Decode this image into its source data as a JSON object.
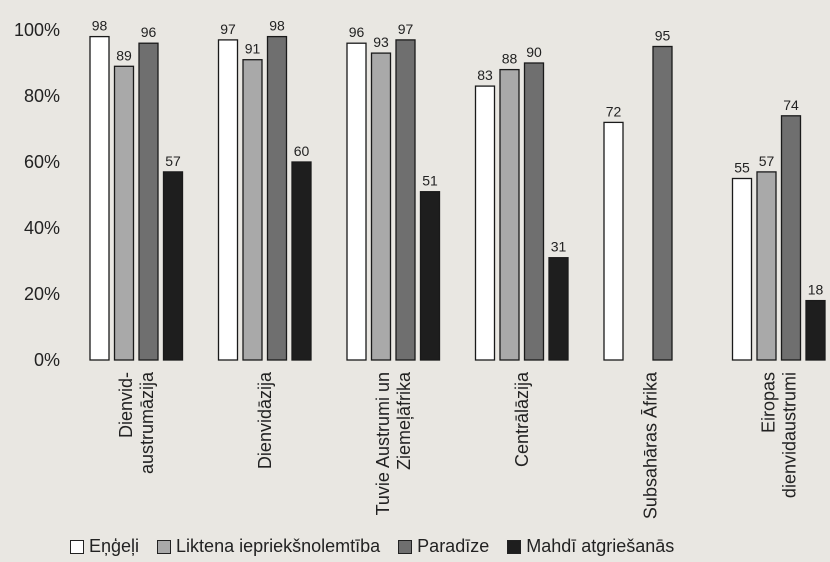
{
  "chart_data": {
    "type": "bar",
    "categories": [
      [
        "Dienvid-",
        "austrumāzija"
      ],
      [
        "Dienvidāzija"
      ],
      [
        "Tuvie Austrumi un",
        "Ziemeļāfrika"
      ],
      [
        "Centrālāzija"
      ],
      [
        "Subsahāras Āfrika"
      ],
      [
        "Eiropas",
        "dienvidaustrumi"
      ]
    ],
    "series": [
      {
        "name": "Eņģeļi",
        "color": "#ffffff",
        "values": [
          98,
          97,
          96,
          83,
          72,
          55
        ]
      },
      {
        "name": "Liktena iepriekšnolemtība",
        "color": "#a9a9a9",
        "values": [
          89,
          91,
          93,
          88,
          null,
          57
        ]
      },
      {
        "name": "Paradīze",
        "color": "#6f6f6f",
        "values": [
          96,
          98,
          97,
          90,
          95,
          74
        ]
      },
      {
        "name": "Mahdī atgriešanās",
        "color": "#1e1e1e",
        "values": [
          57,
          60,
          51,
          31,
          null,
          18
        ]
      }
    ],
    "yticks": [
      "0%",
      "20%",
      "40%",
      "60%",
      "80%",
      "100%"
    ],
    "ylim": [
      0,
      100
    ],
    "title": "",
    "xlabel": "",
    "ylabel": "",
    "legend_position": "bottom",
    "grid": false
  }
}
